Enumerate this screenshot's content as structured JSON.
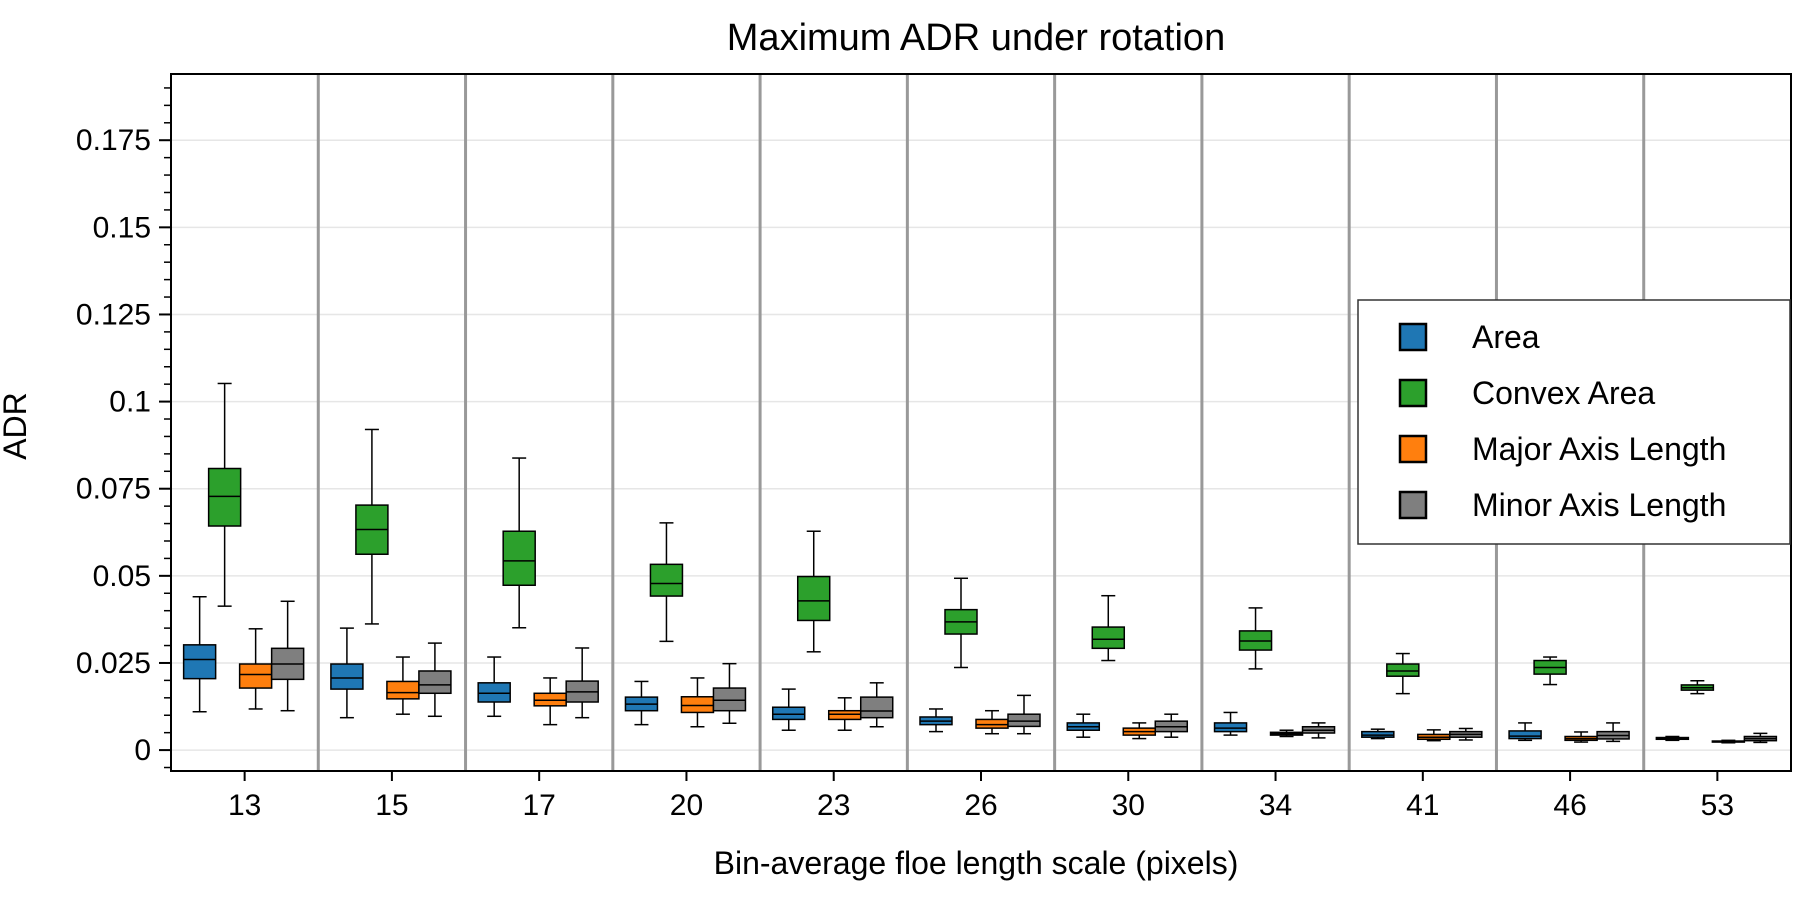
{
  "chart_data": {
    "type": "box",
    "title": "Maximum ADR under rotation",
    "xlabel": "Bin-average floe length scale (pixels)",
    "ylabel": "ADR",
    "ylim": [
      -0.006,
      0.194
    ],
    "y_ticks": [
      0,
      0.025,
      0.05,
      0.075,
      0.1,
      0.125,
      0.15,
      0.175
    ],
    "y_tick_labels": [
      "0",
      "0.025",
      "0.05",
      "0.075",
      "0.1",
      "0.125",
      "0.15",
      "0.175"
    ],
    "categories": [
      "13",
      "15",
      "17",
      "20",
      "23",
      "26",
      "30",
      "34",
      "41",
      "46",
      "53"
    ],
    "grid": "horizontal",
    "legend_position": "right",
    "series": [
      {
        "name": "Area",
        "color": "#1f77b4",
        "boxes": [
          {
            "whislo": 0.011,
            "q1": 0.0205,
            "med": 0.026,
            "q3": 0.0302,
            "whishi": 0.044
          },
          {
            "whislo": 0.0093,
            "q1": 0.0175,
            "med": 0.0207,
            "q3": 0.0247,
            "whishi": 0.035
          },
          {
            "whislo": 0.0097,
            "q1": 0.0138,
            "med": 0.0163,
            "q3": 0.0193,
            "whishi": 0.0267
          },
          {
            "whislo": 0.0073,
            "q1": 0.0113,
            "med": 0.0132,
            "q3": 0.0152,
            "whishi": 0.0197
          },
          {
            "whislo": 0.0057,
            "q1": 0.0088,
            "med": 0.0103,
            "q3": 0.0123,
            "whishi": 0.0175
          },
          {
            "whislo": 0.0053,
            "q1": 0.0073,
            "med": 0.0083,
            "q3": 0.0095,
            "whishi": 0.0118
          },
          {
            "whislo": 0.0037,
            "q1": 0.0057,
            "med": 0.0067,
            "q3": 0.0078,
            "whishi": 0.0103
          },
          {
            "whislo": 0.0043,
            "q1": 0.0053,
            "med": 0.0063,
            "q3": 0.0078,
            "whishi": 0.0108
          },
          {
            "whislo": 0.0033,
            "q1": 0.0037,
            "med": 0.0043,
            "q3": 0.0053,
            "whishi": 0.006
          },
          {
            "whislo": 0.0028,
            "q1": 0.0033,
            "med": 0.004,
            "q3": 0.0055,
            "whishi": 0.0078
          },
          {
            "whislo": 0.0028,
            "q1": 0.0031,
            "med": 0.0034,
            "q3": 0.0036,
            "whishi": 0.0039
          }
        ]
      },
      {
        "name": "Convex Area",
        "color": "#2ca02c",
        "boxes": [
          {
            "whislo": 0.0413,
            "q1": 0.0643,
            "med": 0.0728,
            "q3": 0.0808,
            "whishi": 0.1052
          },
          {
            "whislo": 0.0362,
            "q1": 0.0562,
            "med": 0.0633,
            "q3": 0.0703,
            "whishi": 0.092
          },
          {
            "whislo": 0.0351,
            "q1": 0.0473,
            "med": 0.0543,
            "q3": 0.0628,
            "whishi": 0.0838
          },
          {
            "whislo": 0.0312,
            "q1": 0.0442,
            "med": 0.0478,
            "q3": 0.0533,
            "whishi": 0.0652
          },
          {
            "whislo": 0.0282,
            "q1": 0.0372,
            "med": 0.0428,
            "q3": 0.0498,
            "whishi": 0.0628
          },
          {
            "whislo": 0.0237,
            "q1": 0.0333,
            "med": 0.0368,
            "q3": 0.0403,
            "whishi": 0.0493
          },
          {
            "whislo": 0.0257,
            "q1": 0.0292,
            "med": 0.0318,
            "q3": 0.0353,
            "whishi": 0.0443
          },
          {
            "whislo": 0.0233,
            "q1": 0.0287,
            "med": 0.0313,
            "q3": 0.0342,
            "whishi": 0.0408
          },
          {
            "whislo": 0.0162,
            "q1": 0.0212,
            "med": 0.0227,
            "q3": 0.0247,
            "whishi": 0.0277
          },
          {
            "whislo": 0.0188,
            "q1": 0.0218,
            "med": 0.0237,
            "q3": 0.0257,
            "whishi": 0.0267
          },
          {
            "whislo": 0.0162,
            "q1": 0.0172,
            "med": 0.0179,
            "q3": 0.0187,
            "whishi": 0.0199
          }
        ]
      },
      {
        "name": "Major Axis Length",
        "color": "#ff7f0e",
        "boxes": [
          {
            "whislo": 0.0118,
            "q1": 0.0178,
            "med": 0.0217,
            "q3": 0.0247,
            "whishi": 0.0348
          },
          {
            "whislo": 0.0103,
            "q1": 0.0147,
            "med": 0.0165,
            "q3": 0.0197,
            "whishi": 0.0267
          },
          {
            "whislo": 0.0073,
            "q1": 0.0127,
            "med": 0.0143,
            "q3": 0.0163,
            "whishi": 0.0207
          },
          {
            "whislo": 0.0067,
            "q1": 0.0108,
            "med": 0.0128,
            "q3": 0.0153,
            "whishi": 0.0207
          },
          {
            "whislo": 0.0057,
            "q1": 0.0088,
            "med": 0.0103,
            "q3": 0.0113,
            "whishi": 0.015
          },
          {
            "whislo": 0.0047,
            "q1": 0.0063,
            "med": 0.0073,
            "q3": 0.0088,
            "whishi": 0.0113
          },
          {
            "whislo": 0.0033,
            "q1": 0.0043,
            "med": 0.0053,
            "q3": 0.0063,
            "whishi": 0.0078
          },
          {
            "whislo": 0.0039,
            "q1": 0.0043,
            "med": 0.0047,
            "q3": 0.0051,
            "whishi": 0.0057
          },
          {
            "whislo": 0.0027,
            "q1": 0.0031,
            "med": 0.0037,
            "q3": 0.0045,
            "whishi": 0.0058
          },
          {
            "whislo": 0.0023,
            "q1": 0.0028,
            "med": 0.0033,
            "q3": 0.0039,
            "whishi": 0.0052
          },
          {
            "whislo": 0.0021,
            "q1": 0.0023,
            "med": 0.0025,
            "q3": 0.0026,
            "whishi": 0.0028
          }
        ]
      },
      {
        "name": "Minor Axis Length",
        "color": "#7f7f7f",
        "boxes": [
          {
            "whislo": 0.0113,
            "q1": 0.0203,
            "med": 0.0247,
            "q3": 0.0292,
            "whishi": 0.0427
          },
          {
            "whislo": 0.0097,
            "q1": 0.0163,
            "med": 0.0187,
            "q3": 0.0227,
            "whishi": 0.0307
          },
          {
            "whislo": 0.0093,
            "q1": 0.0138,
            "med": 0.0167,
            "q3": 0.0198,
            "whishi": 0.0293
          },
          {
            "whislo": 0.0077,
            "q1": 0.0113,
            "med": 0.0143,
            "q3": 0.0178,
            "whishi": 0.0248
          },
          {
            "whislo": 0.0067,
            "q1": 0.0093,
            "med": 0.0112,
            "q3": 0.0152,
            "whishi": 0.0193
          },
          {
            "whislo": 0.0047,
            "q1": 0.0068,
            "med": 0.0083,
            "q3": 0.0103,
            "whishi": 0.0157
          },
          {
            "whislo": 0.0037,
            "q1": 0.0053,
            "med": 0.0067,
            "q3": 0.0083,
            "whishi": 0.0103
          },
          {
            "whislo": 0.0035,
            "q1": 0.0049,
            "med": 0.0057,
            "q3": 0.0067,
            "whishi": 0.0078
          },
          {
            "whislo": 0.0029,
            "q1": 0.0037,
            "med": 0.0045,
            "q3": 0.0053,
            "whishi": 0.0062
          },
          {
            "whislo": 0.0025,
            "q1": 0.0032,
            "med": 0.0042,
            "q3": 0.0053,
            "whishi": 0.0078
          },
          {
            "whislo": 0.0022,
            "q1": 0.0027,
            "med": 0.0033,
            "q3": 0.0039,
            "whishi": 0.0048
          }
        ]
      }
    ],
    "legend_order": [
      "Area",
      "Convex Area",
      "Major Axis Length",
      "Minor Axis Length"
    ]
  }
}
